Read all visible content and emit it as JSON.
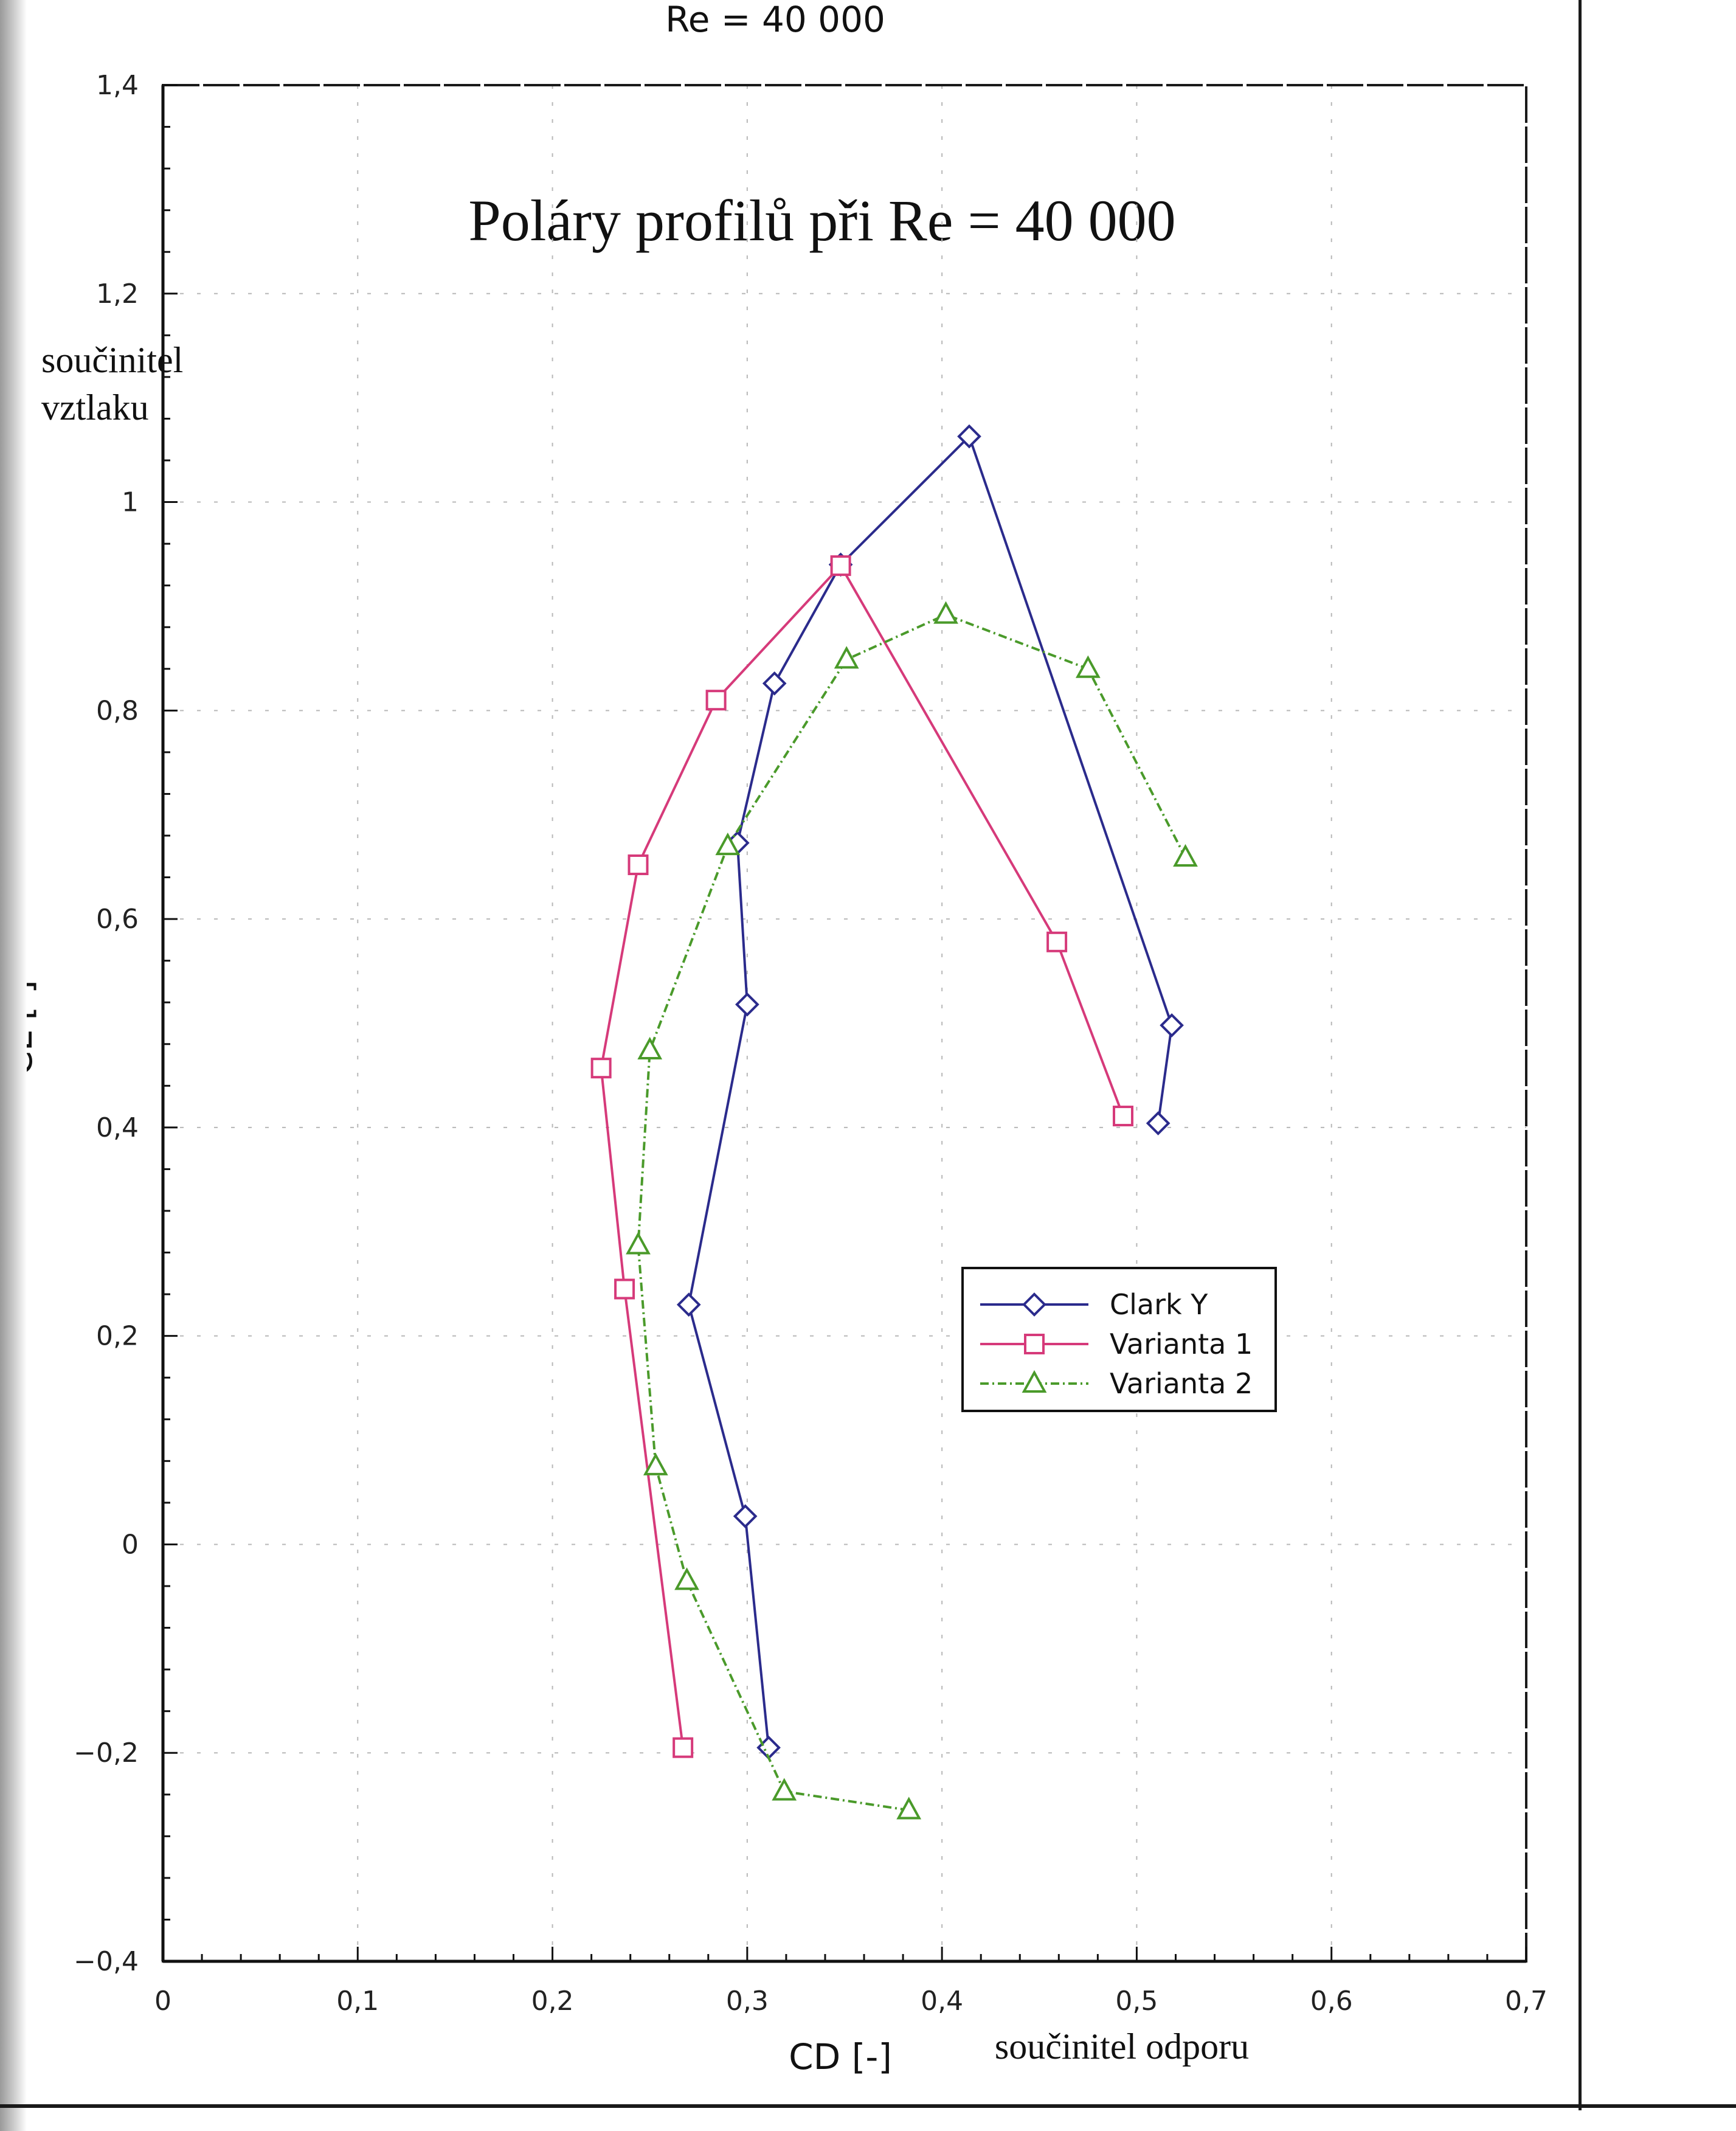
{
  "chart_data": {
    "type": "line",
    "top_title": "Re = 40 000",
    "title": "Poláry profilů při Re = 40 000",
    "xlabel": "CD [-]",
    "xlabel_note": "součinitel odporu",
    "ylabel": "CL [-]",
    "ylabel_note_line1": "součinitel",
    "ylabel_note_line2": "vztlaku",
    "xlim": [
      0,
      0.7
    ],
    "ylim": [
      -0.4,
      1.4
    ],
    "xticks": [
      0,
      0.1,
      0.2,
      0.3,
      0.4,
      0.5,
      0.6,
      0.7
    ],
    "xtick_labels": [
      "0",
      "0,1",
      "0,2",
      "0,3",
      "0,4",
      "0,5",
      "0,6",
      "0,7"
    ],
    "yticks": [
      -0.4,
      -0.2,
      0,
      0.2,
      0.4,
      0.6,
      0.8,
      1.0,
      1.2,
      1.4
    ],
    "ytick_labels": [
      "−0,4",
      "−0,2",
      "0",
      "0,2",
      "0,4",
      "0,6",
      "0,8",
      "1",
      "1,2",
      "1,4"
    ],
    "grid": true,
    "legend_position": "right, lower-middle",
    "series": [
      {
        "name": "Clark Y",
        "color": "#2b2b8c",
        "marker": "diamond",
        "x": [
          0.311,
          0.299,
          0.27,
          0.3,
          0.295,
          0.314,
          0.348,
          0.414,
          0.518,
          0.511
        ],
        "y": [
          -0.195,
          0.027,
          0.23,
          0.518,
          0.673,
          0.826,
          0.94,
          1.063,
          0.498,
          0.404
        ]
      },
      {
        "name": "Varianta 1",
        "color": "#d63a7a",
        "marker": "square",
        "x": [
          0.267,
          0.237,
          0.225,
          0.244,
          0.284,
          0.348,
          0.459,
          0.493
        ],
        "y": [
          -0.195,
          0.245,
          0.457,
          0.652,
          0.81,
          0.939,
          0.578,
          0.411
        ]
      },
      {
        "name": "Varianta 2",
        "color": "#4a9a2a",
        "marker": "triangle",
        "x": [
          0.383,
          0.319,
          0.269,
          0.253,
          0.244,
          0.25,
          0.29,
          0.351,
          0.402,
          0.475,
          0.525
        ],
        "y": [
          -0.255,
          -0.237,
          -0.035,
          0.075,
          0.287,
          0.474,
          0.67,
          0.849,
          0.892,
          0.84,
          0.659
        ]
      }
    ]
  }
}
